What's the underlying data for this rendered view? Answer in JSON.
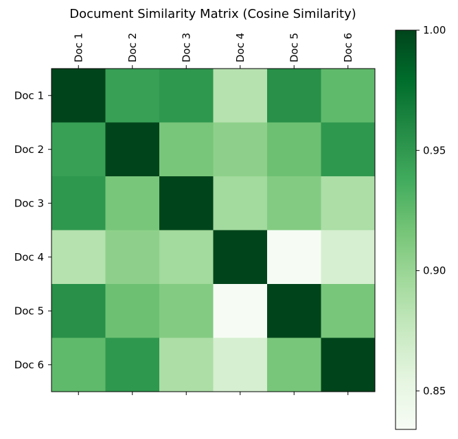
{
  "chart_data": {
    "type": "heatmap",
    "title": "Document Similarity Matrix (Cosine Similarity)",
    "row_labels": [
      "Doc 1",
      "Doc 2",
      "Doc 3",
      "Doc 4",
      "Doc 5",
      "Doc 6"
    ],
    "col_labels": [
      "Doc 1",
      "Doc 2",
      "Doc 3",
      "Doc 4",
      "Doc 5",
      "Doc 6"
    ],
    "values": [
      [
        1.0,
        0.945,
        0.95,
        0.885,
        0.955,
        0.925
      ],
      [
        0.945,
        1.0,
        0.915,
        0.905,
        0.92,
        0.95
      ],
      [
        0.95,
        0.915,
        1.0,
        0.895,
        0.91,
        0.89
      ],
      [
        0.885,
        0.905,
        0.895,
        1.0,
        0.835,
        0.865
      ],
      [
        0.955,
        0.92,
        0.91,
        0.835,
        1.0,
        0.915
      ],
      [
        0.925,
        0.95,
        0.89,
        0.865,
        0.915,
        1.0
      ]
    ],
    "colormap": "Greens",
    "vmin": 0.834,
    "vmax": 1.0,
    "colorbar": {
      "ticks": [
        0.85,
        0.9,
        0.95,
        1.0
      ],
      "tick_labels": [
        "0.85",
        "0.90",
        "0.95",
        "1.00"
      ],
      "location": "right"
    },
    "xaxis_position": "top"
  }
}
